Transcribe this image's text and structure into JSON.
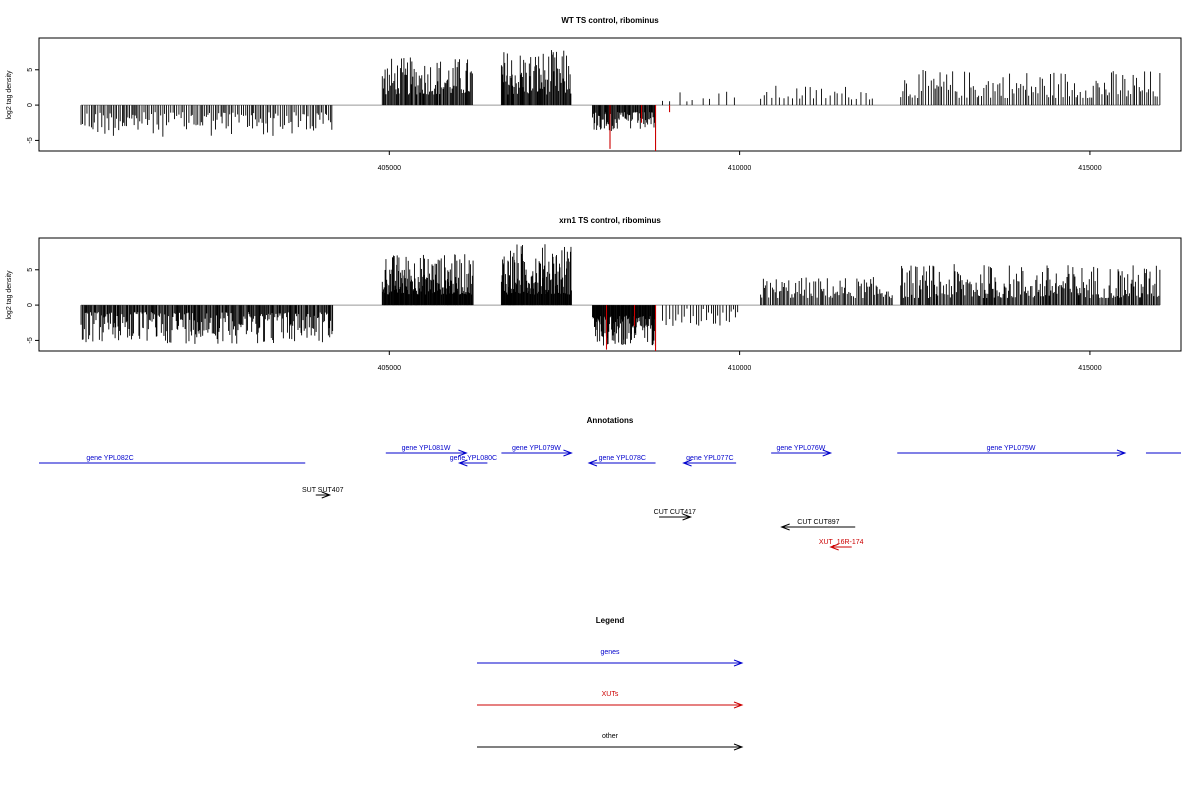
{
  "chart_data": [
    {
      "type": "bar",
      "title": "WT TS control, ribominus",
      "ylabel": "log2 tag density",
      "xlim": [
        400000,
        416300
      ],
      "ylim": [
        -6.5,
        9.5
      ],
      "xticks": [
        405000,
        410000,
        415000
      ],
      "yticks": [
        -5,
        0,
        5
      ],
      "ytick_labels": [
        "-5",
        "0",
        "5"
      ],
      "grid": false,
      "colors": {
        "black": "#000000",
        "red": "#cc0000",
        "baseline": "#999999"
      },
      "regions": [
        {
          "from": 400600,
          "to": 404200,
          "sign": -1,
          "min": 1.0,
          "max": 4.5,
          "step": 25,
          "color": "black"
        },
        {
          "from": 404900,
          "to": 406200,
          "sign": 1,
          "min": 1.5,
          "max": 6.8,
          "step": 14,
          "color": "black"
        },
        {
          "from": 406600,
          "to": 407600,
          "sign": 1,
          "min": 1.5,
          "max": 7.9,
          "step": 12,
          "color": "black"
        },
        {
          "from": 407900,
          "to": 408800,
          "sign": -1,
          "min": 1.0,
          "max": 3.8,
          "step": 12,
          "color": "black"
        },
        {
          "from": 408900,
          "to": 410000,
          "sign": 1,
          "min": 0.5,
          "max": 2.0,
          "step": 120,
          "color": "black"
        },
        {
          "from": 410300,
          "to": 411900,
          "sign": 1,
          "min": 0.8,
          "max": 2.8,
          "step": 55,
          "color": "black"
        },
        {
          "from": 412300,
          "to": 416000,
          "sign": 1,
          "min": 1.0,
          "max": 5.0,
          "step": 30,
          "color": "black"
        }
      ],
      "highlights": [
        {
          "x": 408150,
          "y": -6.2,
          "color": "red"
        },
        {
          "x": 408800,
          "y": -6.5,
          "color": "red"
        },
        {
          "x": 408600,
          "y": -2.5,
          "color": "red"
        },
        {
          "x": 409000,
          "y": -1.0,
          "color": "red"
        }
      ]
    },
    {
      "type": "bar",
      "title": "xrn1 TS control, ribominus",
      "ylabel": "log2 tag density",
      "xlim": [
        400000,
        416300
      ],
      "ylim": [
        -6.5,
        9.5
      ],
      "xticks": [
        405000,
        410000,
        415000
      ],
      "yticks": [
        -5,
        0,
        5
      ],
      "ytick_labels": [
        "-5",
        "0",
        "5"
      ],
      "grid": false,
      "colors": {
        "black": "#000000",
        "red": "#cc0000",
        "baseline": "#999999"
      },
      "regions": [
        {
          "from": 400600,
          "to": 404200,
          "sign": -1,
          "min": 1.0,
          "max": 5.5,
          "step": 14,
          "color": "black"
        },
        {
          "from": 404900,
          "to": 406200,
          "sign": 1,
          "min": 1.5,
          "max": 7.3,
          "step": 8,
          "color": "black"
        },
        {
          "from": 406600,
          "to": 407600,
          "sign": 1,
          "min": 1.5,
          "max": 8.8,
          "step": 8,
          "color": "black"
        },
        {
          "from": 407900,
          "to": 408800,
          "sign": -1,
          "min": 1.5,
          "max": 5.8,
          "step": 8,
          "color": "black"
        },
        {
          "from": 408900,
          "to": 410000,
          "sign": -1,
          "min": 0.5,
          "max": 3.0,
          "step": 40,
          "color": "black"
        },
        {
          "from": 410300,
          "to": 412200,
          "sign": 1,
          "min": 1.0,
          "max": 4.0,
          "step": 20,
          "color": "black"
        },
        {
          "from": 412300,
          "to": 416000,
          "sign": 1,
          "min": 1.0,
          "max": 5.8,
          "step": 16,
          "color": "black"
        }
      ],
      "highlights": [
        {
          "x": 408100,
          "y": -6.3,
          "color": "red"
        },
        {
          "x": 408800,
          "y": -6.5,
          "color": "red"
        },
        {
          "x": 408500,
          "y": -3.0,
          "color": "red"
        }
      ]
    }
  ],
  "annotations": {
    "title": "Annotations",
    "xlim": [
      400000,
      416300
    ],
    "colors": {
      "gene": "#0000cc",
      "xut": "#cc0000",
      "other": "#000000"
    },
    "features": [
      {
        "label": "gene YPL082C",
        "kind": "gene",
        "start": 400000,
        "end": 403800,
        "strand": "none",
        "row": 1
      },
      {
        "label": "gene YPL081W",
        "kind": "gene",
        "start": 404950,
        "end": 406100,
        "strand": "+",
        "row": 0
      },
      {
        "label": "gene YPL080C",
        "kind": "gene",
        "start": 406000,
        "end": 406400,
        "strand": "-",
        "row": 1
      },
      {
        "label": "gene YPL079W",
        "kind": "gene",
        "start": 406600,
        "end": 407600,
        "strand": "+",
        "row": 0
      },
      {
        "label": "gene YPL078C",
        "kind": "gene",
        "start": 407850,
        "end": 408800,
        "strand": "-",
        "row": 1
      },
      {
        "label": "gene YPL077C",
        "kind": "gene",
        "start": 409200,
        "end": 409950,
        "strand": "-",
        "row": 1
      },
      {
        "label": "gene YPL076W",
        "kind": "gene",
        "start": 410450,
        "end": 411300,
        "strand": "+",
        "row": 0
      },
      {
        "label": "gene YPL075W",
        "kind": "gene",
        "start": 412250,
        "end": 415500,
        "strand": "+",
        "row": 0
      },
      {
        "label": "",
        "kind": "gene",
        "start": 415800,
        "end": 416300,
        "strand": "none",
        "row": 0
      },
      {
        "label": "SUT SUT407",
        "kind": "other",
        "start": 403950,
        "end": 404150,
        "strand": "+",
        "row": 3
      },
      {
        "label": "CUT CUT417",
        "kind": "other",
        "start": 408850,
        "end": 409300,
        "strand": "+",
        "row": 4
      },
      {
        "label": "CUT CUT897",
        "kind": "other",
        "start": 410600,
        "end": 411650,
        "strand": "-",
        "row": 5
      },
      {
        "label": "XUT_16R-174",
        "kind": "xut",
        "start": 411300,
        "end": 411600,
        "strand": "-",
        "row": 6
      }
    ]
  },
  "legend": {
    "title": "Legend",
    "items": [
      {
        "label": "genes",
        "color": "#0000cc"
      },
      {
        "label": "XUTs",
        "color": "#cc0000"
      },
      {
        "label": "other",
        "color": "#000000"
      }
    ]
  }
}
